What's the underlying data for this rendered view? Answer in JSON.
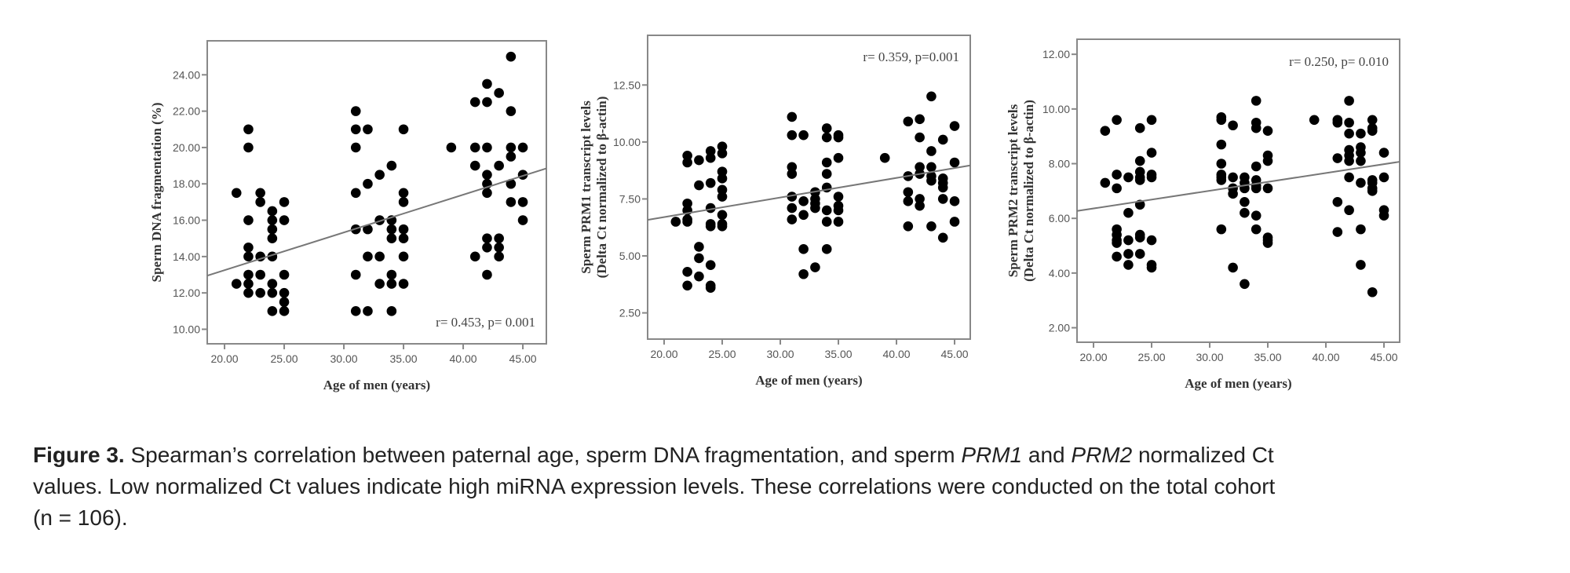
{
  "chart_data": [
    {
      "type": "scatter",
      "id": "dna",
      "xlabel": "Age of men (years)",
      "ylabel": [
        "Sperm DNA fragmentation (%)"
      ],
      "annotation": "r= 0.453, p= 0.001",
      "xlim": [
        18.55,
        46.97
      ],
      "ylim": [
        9.2,
        25.87
      ],
      "xticks": [
        20,
        25,
        30,
        35,
        40,
        45
      ],
      "xtick_labels": [
        "20.00",
        "25.00",
        "30.00",
        "35.00",
        "40.00",
        "45.00"
      ],
      "yticks": [
        10,
        12,
        14,
        16,
        18,
        20,
        22,
        24
      ],
      "ytick_labels": [
        "10.00",
        "12.00",
        "14.00",
        "16.00",
        "18.00",
        "20.00",
        "22.00",
        "24.00"
      ],
      "trend": {
        "x": [
          18.55,
          46.97
        ],
        "y": [
          12.95,
          18.85
        ]
      },
      "points": {
        "21": [
          17.5,
          12.5
        ],
        "22": [
          21,
          20,
          16,
          14.5,
          14,
          13,
          12.5,
          12
        ],
        "23": [
          17.5,
          17,
          14,
          13,
          12
        ],
        "24": [
          16.5,
          16,
          15.5,
          15,
          14,
          12.5,
          12,
          11
        ],
        "25": [
          17,
          16,
          13,
          12,
          11.5,
          11
        ],
        "31": [
          22,
          21,
          20,
          17.5,
          15.5,
          13,
          11
        ],
        "32": [
          21,
          18,
          15.5,
          14,
          11
        ],
        "33": [
          18.5,
          16,
          14,
          12.5
        ],
        "34": [
          19,
          16,
          15.5,
          15,
          13,
          12.5,
          11
        ],
        "35": [
          21,
          17.5,
          17,
          15.5,
          15,
          14,
          12.5
        ],
        "39": [
          20
        ],
        "41": [
          22.5,
          20,
          19,
          14
        ],
        "42": [
          23.5,
          22.5,
          20,
          18.5,
          18,
          17.5,
          15,
          14.5,
          13
        ],
        "43": [
          23,
          19,
          15,
          14.5,
          14
        ],
        "44": [
          25,
          22,
          20,
          19.5,
          18,
          17
        ],
        "45": [
          20,
          18.5,
          17,
          16
        ]
      }
    },
    {
      "type": "scatter",
      "id": "prm1",
      "xlabel": "Age of men (years)",
      "ylabel": [
        "Sperm PRM1 transcript levels",
        "(Delta Ct normalized to β-actin)"
      ],
      "annotation": "r= 0.359, p=0.001",
      "xlim": [
        18.58,
        46.35
      ],
      "ylim": [
        1.35,
        14.68
      ],
      "xticks": [
        20,
        25,
        30,
        35,
        40,
        45
      ],
      "xtick_labels": [
        "20.00",
        "25.00",
        "30.00",
        "35.00",
        "40.00",
        "45.00"
      ],
      "yticks": [
        2.5,
        5,
        7.5,
        10,
        12.5
      ],
      "ytick_labels": [
        "2.50",
        "5.00",
        "7.50",
        "10.00",
        "12.50"
      ],
      "trend": {
        "x": [
          18.58,
          46.35
        ],
        "y": [
          6.58,
          8.97
        ]
      },
      "points": {
        "21": [
          6.5
        ],
        "22": [
          9.4,
          9.1,
          7.3,
          7.0,
          6.6,
          6.5,
          4.3,
          3.7
        ],
        "23": [
          9.2,
          8.1,
          5.4,
          4.9,
          4.1
        ],
        "24": [
          9.6,
          9.3,
          8.2,
          7.1,
          6.4,
          6.3,
          4.6,
          3.7,
          3.6
        ],
        "25": [
          9.8,
          9.5,
          8.7,
          8.4,
          7.9,
          7.6,
          6.8,
          6.4,
          6.3
        ],
        "31": [
          11.1,
          10.3,
          8.9,
          8.6,
          7.6,
          7.1,
          6.6
        ],
        "32": [
          10.3,
          7.4,
          6.8,
          5.3,
          4.2
        ],
        "33": [
          7.8,
          7.5,
          7.3,
          7.1,
          4.5
        ],
        "34": [
          10.6,
          10.2,
          9.1,
          8.6,
          8.0,
          7.0,
          6.5,
          5.3
        ],
        "35": [
          10.3,
          10.2,
          9.3,
          7.6,
          7.2,
          7.0,
          6.5
        ],
        "39": [
          9.3
        ],
        "41": [
          10.9,
          8.5,
          7.8,
          7.4,
          6.3
        ],
        "42": [
          11.0,
          10.2,
          8.9,
          8.6,
          7.5,
          7.2
        ],
        "43": [
          12.0,
          9.6,
          8.9,
          8.5,
          8.3,
          6.3
        ],
        "44": [
          10.1,
          8.4,
          8.2,
          8.0,
          7.5,
          5.8
        ],
        "45": [
          10.7,
          9.1,
          7.4,
          6.5
        ]
      }
    },
    {
      "type": "scatter",
      "id": "prm2",
      "xlabel": "Age of men (years)",
      "ylabel": [
        "Sperm PRM2 transcript levels",
        "(Delta Ct normalized to β-actin)"
      ],
      "annotation": "r= 0.250, p= 0.010",
      "xlim": [
        18.58,
        46.35
      ],
      "ylim": [
        1.47,
        12.55
      ],
      "xticks": [
        20,
        25,
        30,
        35,
        40,
        45
      ],
      "xtick_labels": [
        "20.00",
        "25.00",
        "30.00",
        "35.00",
        "40.00",
        "45.00"
      ],
      "yticks": [
        2,
        4,
        6,
        8,
        10,
        12
      ],
      "ytick_labels": [
        "2.00",
        "4.00",
        "6.00",
        "8.00",
        "10.00",
        "12.00"
      ],
      "trend": {
        "x": [
          18.58,
          46.35
        ],
        "y": [
          6.27,
          8.07
        ]
      },
      "points": {
        "21": [
          9.2,
          7.3
        ],
        "22": [
          9.6,
          7.6,
          7.1,
          5.6,
          5.4,
          5.2,
          5.1,
          4.6
        ],
        "23": [
          7.5,
          6.2,
          5.2,
          4.7,
          4.3
        ],
        "24": [
          9.3,
          8.1,
          7.7,
          7.5,
          7.4,
          6.5,
          5.4,
          5.3,
          4.7
        ],
        "25": [
          9.6,
          8.4,
          7.6,
          7.5,
          5.2,
          4.3,
          4.2
        ],
        "31": [
          9.7,
          9.6,
          8.7,
          8.0,
          7.6,
          7.5,
          7.4,
          5.6
        ],
        "32": [
          9.4,
          7.5,
          7.1,
          6.9,
          4.2
        ],
        "33": [
          7.5,
          7.3,
          7.1,
          6.6,
          6.2,
          3.6
        ],
        "34": [
          10.3,
          9.5,
          9.3,
          7.9,
          7.4,
          7.2,
          7.1,
          6.1,
          5.6
        ],
        "35": [
          9.2,
          8.3,
          8.1,
          7.1,
          5.3,
          5.2,
          5.1
        ],
        "39": [
          9.6
        ],
        "41": [
          9.6,
          9.5,
          8.2,
          6.6,
          5.5
        ],
        "42": [
          10.3,
          9.5,
          9.1,
          8.5,
          8.3,
          8.1,
          7.5,
          6.3
        ],
        "43": [
          9.1,
          8.6,
          8.4,
          8.1,
          7.3,
          5.6,
          4.3
        ],
        "44": [
          9.6,
          9.3,
          9.2,
          7.4,
          7.3,
          7.1,
          7.0,
          3.3
        ],
        "45": [
          8.4,
          7.5,
          6.3,
          6.1
        ]
      }
    }
  ],
  "caption": {
    "label": "Figure 3.",
    "line1_a": " Spearman’s correlation between paternal age, sperm DNA fragmentation, and sperm ",
    "gene1": "PRM1",
    "line1_b": " and ",
    "gene2": "PRM2",
    "line1_c": " normalized Ct",
    "line2": "values. Low normalized Ct values indicate high miRNA expression levels. These correlations were conducted on the total cohort",
    "line3": "(n = 106)."
  },
  "colors": {
    "dot": "#000000",
    "axis": "#888888",
    "trend": "#777777",
    "tick_text": "#555555"
  }
}
